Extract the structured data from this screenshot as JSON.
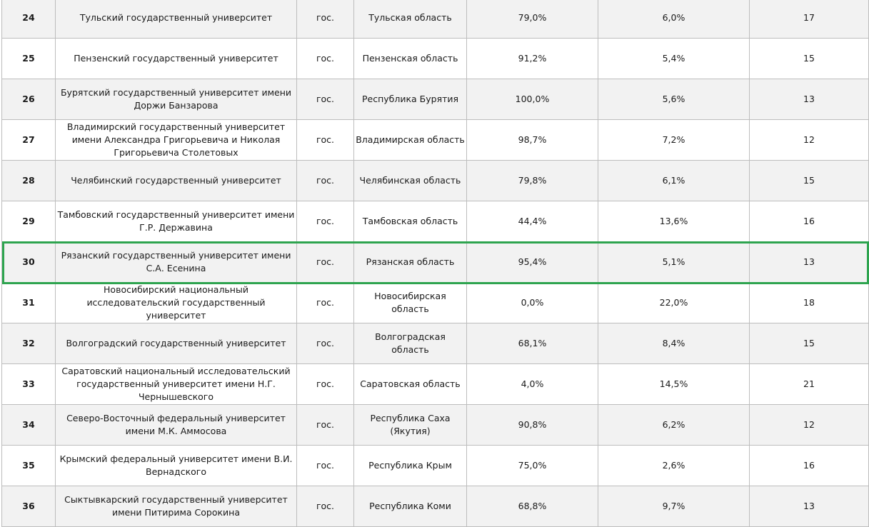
{
  "table": {
    "rows": [
      {
        "rank": "24",
        "name": "Тульский государственный университет",
        "type": "гос.",
        "region": "Тульская область",
        "pct1": "79,0%",
        "pct2": "6,0%",
        "score": "17"
      },
      {
        "rank": "25",
        "name": "Пензенский государственный университет",
        "type": "гос.",
        "region": "Пензенская область",
        "pct1": "91,2%",
        "pct2": "5,4%",
        "score": "15"
      },
      {
        "rank": "26",
        "name": "Бурятский государственный университет имени Доржи Банзарова",
        "type": "гос.",
        "region": "Республика Бурятия",
        "pct1": "100,0%",
        "pct2": "5,6%",
        "score": "13"
      },
      {
        "rank": "27",
        "name": "Владимирский государственный университет имени Александра Григорьевича и Николая Григорьевича Столетовых",
        "type": "гос.",
        "region": "Владимирская область",
        "pct1": "98,7%",
        "pct2": "7,2%",
        "score": "12"
      },
      {
        "rank": "28",
        "name": "Челябинский государственный университет",
        "type": "гос.",
        "region": "Челябинская область",
        "pct1": "79,8%",
        "pct2": "6,1%",
        "score": "15"
      },
      {
        "rank": "29",
        "name": "Тамбовский государственный университет имени Г.Р. Державина",
        "type": "гос.",
        "region": "Тамбовская область",
        "pct1": "44,4%",
        "pct2": "13,6%",
        "score": "16"
      },
      {
        "rank": "30",
        "name": "Рязанский государственный университет имени С.А. Есенина",
        "type": "гос.",
        "region": "Рязанская область",
        "pct1": "95,4%",
        "pct2": "5,1%",
        "score": "13"
      },
      {
        "rank": "31",
        "name": "Новосибирский национальный исследовательский государственный университет",
        "type": "гос.",
        "region": "Новосибирская область",
        "pct1": "0,0%",
        "pct2": "22,0%",
        "score": "18"
      },
      {
        "rank": "32",
        "name": "Волгоградский государственный университет",
        "type": "гос.",
        "region": "Волгоградская область",
        "pct1": "68,1%",
        "pct2": "8,4%",
        "score": "15"
      },
      {
        "rank": "33",
        "name": "Саратовский национальный исследовательский государственный университет имени Н.Г. Чернышевского",
        "type": "гос.",
        "region": "Саратовская область",
        "pct1": "4,0%",
        "pct2": "14,5%",
        "score": "21"
      },
      {
        "rank": "34",
        "name": "Северо-Восточный федеральный университет имени М.К. Аммосова",
        "type": "гос.",
        "region": "Республика Саха (Якутия)",
        "pct1": "90,8%",
        "pct2": "6,2%",
        "score": "12"
      },
      {
        "rank": "35",
        "name": "Крымский федеральный университет имени В.И. Вернадского",
        "type": "гос.",
        "region": "Республика Крым",
        "pct1": "75,0%",
        "pct2": "2,6%",
        "score": "16"
      },
      {
        "rank": "36",
        "name": "Сыктывкарский государственный университет имени Питирима Сорокина",
        "type": "гос.",
        "region": "Республика Коми",
        "pct1": "68,8%",
        "pct2": "9,7%",
        "score": "13"
      }
    ],
    "highlighted_rank": "30",
    "highlight_color": "#2ea44f"
  }
}
